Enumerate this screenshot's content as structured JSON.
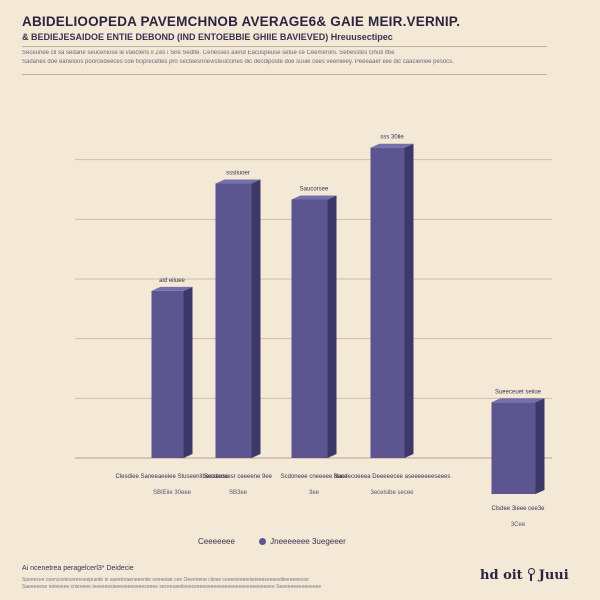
{
  "header": {
    "title": "ABIDELIOOPEDA PAVEMCHNOB AVERAGE6& GAIE MEIR.VERNIP.",
    "subtitle": "& BEDIEJESAIDOE ENTIE DEBOND (IND ENTOEBBIE GHIIE BAVIEVED) Hreuusectipec",
    "rule_desc_1": "Seceunee cil sa sedane seuceniose ie vaeclens il Zes i Sire Sedtle. Cenesses aiend Eacuspeuse setue ce Ceemeroni. Sebesstes Ghuti ifbe",
    "rule_desc_2": "Sadanes doe eaneloos poorcedeeces coe ficiprecetles pro secteesnnevisteuccines dic decdiposte doe suuie cees veeniieey. Peeeaaer eiie dic caacieniee pesocs."
  },
  "chart_data": {
    "type": "bar",
    "categories": [
      "Clesdiee Saneeaeeiee Stuseenitbeeseese",
      "Secdeocesr ceeeene 9ee",
      "Scdoneee cneeeee 3uee",
      "Nacdecoeeea Deeeeecee aseeeeeeeseees",
      "Clsdee 3ieee cee3e"
    ],
    "series": [
      {
        "values": [
          42,
          69,
          65,
          78,
          14
        ],
        "color": "#5c5590"
      }
    ],
    "bar_value_labels": [
      "aid eiiuee",
      "sssiiuoer",
      "Saucorsee",
      "sss 30iie",
      "Sueeceuet seiioe"
    ],
    "category_sublabels": [
      "SBIEiie 30eee",
      "SB3ee",
      "3ee",
      "3ecelsibe secee",
      "3Cee"
    ],
    "ylim": [
      0,
      90
    ],
    "grid": true
  },
  "legend": {
    "items": [
      "Ceeeeeee",
      "Jneeeeeee 3uegeeer"
    ]
  },
  "footer": {
    "note": "Ai ncenetrea peragelcerl3* Deidecie",
    "fine_1": "Speeecee coencoeiecereeseepuede in aseetoraeneeeniie soeeeiae cee Oeeenene ciiose ceeeeieeeenieieeeseeeeeiiieeeeeecoe",
    "fine_2": "Saeeeeese eoieeeee cnieeeee ieeeeeesieeeeeeeeeeeceeee seceeueeiieeeceeeeeeeeeeeeeeeeeeeeeeeeeeeee Seeeeeeeeeeeeeee",
    "logo_left": "hd oit",
    "logo_right": "Juui"
  }
}
